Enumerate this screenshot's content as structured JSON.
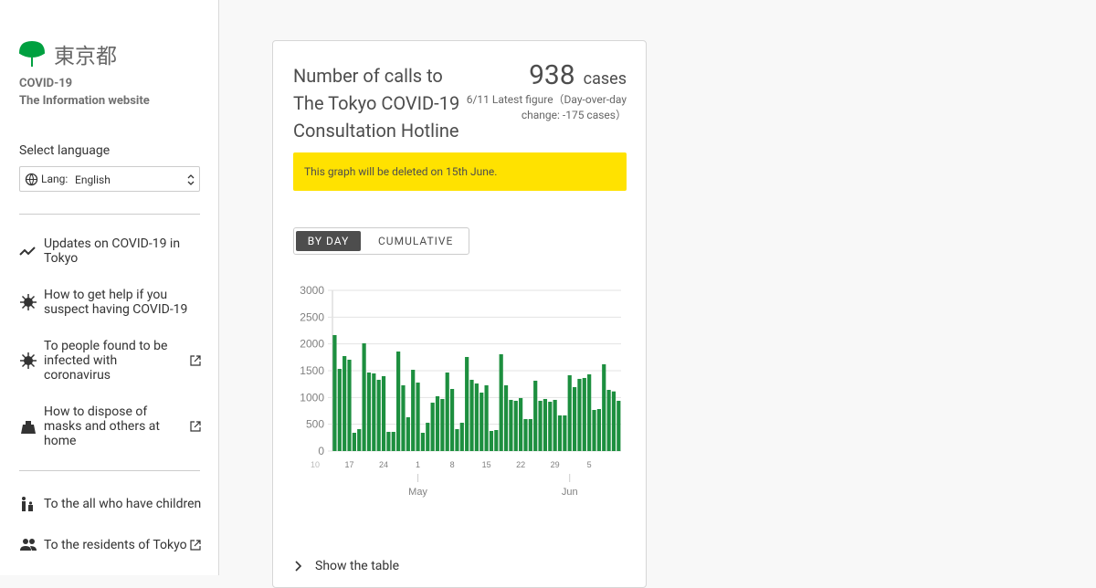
{
  "sidebar": {
    "logo_text": "東京都",
    "site_title": "COVID-19",
    "site_subtitle": "The Information website",
    "language_label": "Select language",
    "lang_prefix": "Lang:",
    "lang_value": "English",
    "nav": [
      "Updates on COVID-19 in Tokyo",
      "How to get help if you suspect having COVID-19",
      "To people found to be infected with coronavirus",
      "How to dispose of masks and others at home",
      "To the all who have children",
      "To the residents of Tokyo"
    ]
  },
  "card": {
    "title": "Number of calls to The Tokyo COVID-19 Consultation Hotline",
    "figure": "938",
    "unit": "cases",
    "note": "6/11 Latest figure（Day-over-day change: -175 cases）",
    "notice": "This graph will be deleted on 15th June.",
    "tabs": [
      "BY DAY",
      "CUMULATIVE"
    ],
    "show_table": "Show the table"
  },
  "chart_data": {
    "type": "bar",
    "color": "#1d8f3f",
    "ylim": [
      0,
      3000
    ],
    "yticks": [
      0,
      500,
      1000,
      1500,
      2000,
      2500,
      3000
    ],
    "grid": true,
    "categories": [
      "10",
      null,
      null,
      null,
      null,
      null,
      null,
      "17",
      null,
      null,
      null,
      null,
      null,
      null,
      "24",
      null,
      null,
      null,
      null,
      null,
      null,
      "1",
      null,
      null,
      null,
      null,
      null,
      null,
      "8",
      null,
      null,
      null,
      null,
      null,
      null,
      "15",
      null,
      null,
      null,
      null,
      null,
      null,
      "22",
      null,
      null,
      null,
      null,
      null,
      null,
      "29",
      null,
      null,
      null,
      null,
      null,
      null,
      "5",
      null,
      null,
      null,
      null,
      null,
      null
    ],
    "months": [
      null,
      null,
      null,
      null,
      null,
      null,
      null,
      null,
      null,
      null,
      null,
      null,
      null,
      null,
      null,
      null,
      null,
      null,
      null,
      null,
      null,
      "May",
      null,
      null,
      null,
      null,
      null,
      null,
      null,
      null,
      null,
      null,
      null,
      null,
      null,
      null,
      null,
      null,
      null,
      null,
      null,
      null,
      null,
      null,
      null,
      null,
      null,
      null,
      null,
      null,
      null,
      null,
      "Jun",
      null,
      null,
      null,
      null,
      null,
      null,
      null,
      null,
      null,
      null
    ],
    "values": [
      null,
      null,
      null,
      null,
      2165,
      1534,
      1773,
      1705,
      341,
      409,
      2011,
      1466,
      1449,
      1330,
      1398,
      358,
      358,
      1858,
      1227,
      631,
      1517,
      1278,
      341,
      528,
      903,
      1023,
      972,
      1466,
      1159,
      409,
      528,
      1756,
      1330,
      1261,
      1091,
      1227,
      375,
      392,
      1807,
      1227,
      955,
      938,
      989,
      597,
      597,
      1313,
      938,
      972,
      920,
      955,
      665,
      665,
      1415,
      1193,
      1347,
      1364,
      1432,
      767,
      784,
      1620,
      1142,
      1113,
      938
    ]
  }
}
